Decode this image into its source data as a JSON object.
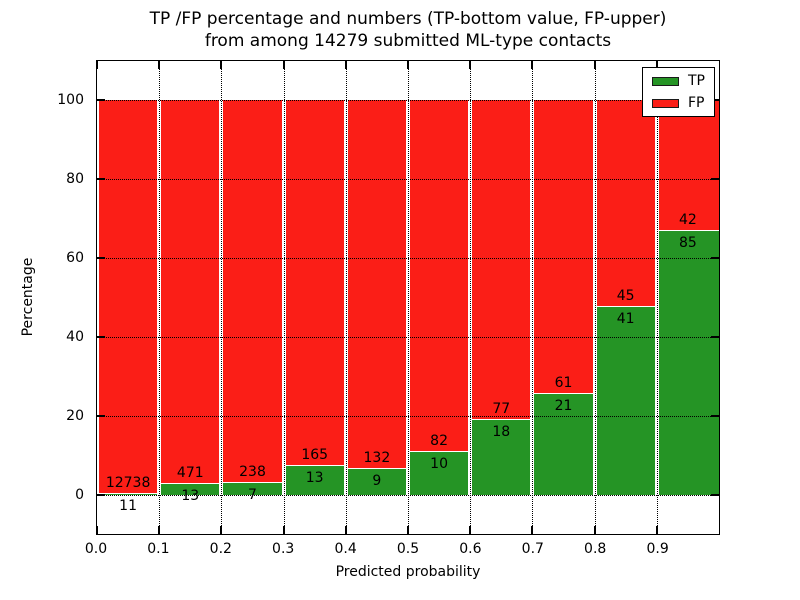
{
  "title": {
    "line1": "TP /FP percentage and numbers (TP-bottom value, FP-upper)",
    "line2": "from among 14279 submitted ML-type contacts"
  },
  "axes": {
    "xlabel": "Predicted probability",
    "ylabel": "Percentage",
    "xtick_labels": [
      "0.0",
      "0.1",
      "0.2",
      "0.3",
      "0.4",
      "0.5",
      "0.6",
      "0.7",
      "0.8",
      "0.9"
    ],
    "xtick_values": [
      0.0,
      0.1,
      0.2,
      0.3,
      0.4,
      0.5,
      0.6,
      0.7,
      0.8,
      0.9
    ],
    "ytick_labels": [
      "0",
      "20",
      "40",
      "60",
      "80",
      "100"
    ],
    "ytick_values": [
      0,
      20,
      40,
      60,
      80,
      100
    ],
    "xlim": [
      0.0,
      1.0
    ],
    "ylim": [
      -10,
      110
    ],
    "grid_style": "dotted"
  },
  "legend": {
    "position": "upper-right",
    "items": [
      {
        "label": "TP",
        "color": "#259425"
      },
      {
        "label": "FP",
        "color": "#fb1e17"
      }
    ]
  },
  "chart_data": {
    "type": "bar",
    "stacked": true,
    "normalized": "each bin scaled to 100%",
    "bin_start": [
      0.0,
      0.1,
      0.2,
      0.3,
      0.4,
      0.5,
      0.6,
      0.7,
      0.8,
      0.9
    ],
    "bin_width": 0.1,
    "series": [
      {
        "name": "TP",
        "color": "#259425",
        "counts": [
          11,
          13,
          7,
          13,
          9,
          10,
          18,
          21,
          41,
          85
        ]
      },
      {
        "name": "FP",
        "color": "#fb1e17",
        "counts": [
          12738,
          471,
          238,
          165,
          132,
          82,
          77,
          61,
          45,
          42
        ]
      }
    ],
    "title": "TP /FP percentage and numbers (TP-bottom value, FP-upper) from among 14279 submitted ML-type contacts",
    "xlabel": "Predicted probability",
    "ylabel": "Percentage",
    "grid": true,
    "legend_position": "upper right"
  }
}
